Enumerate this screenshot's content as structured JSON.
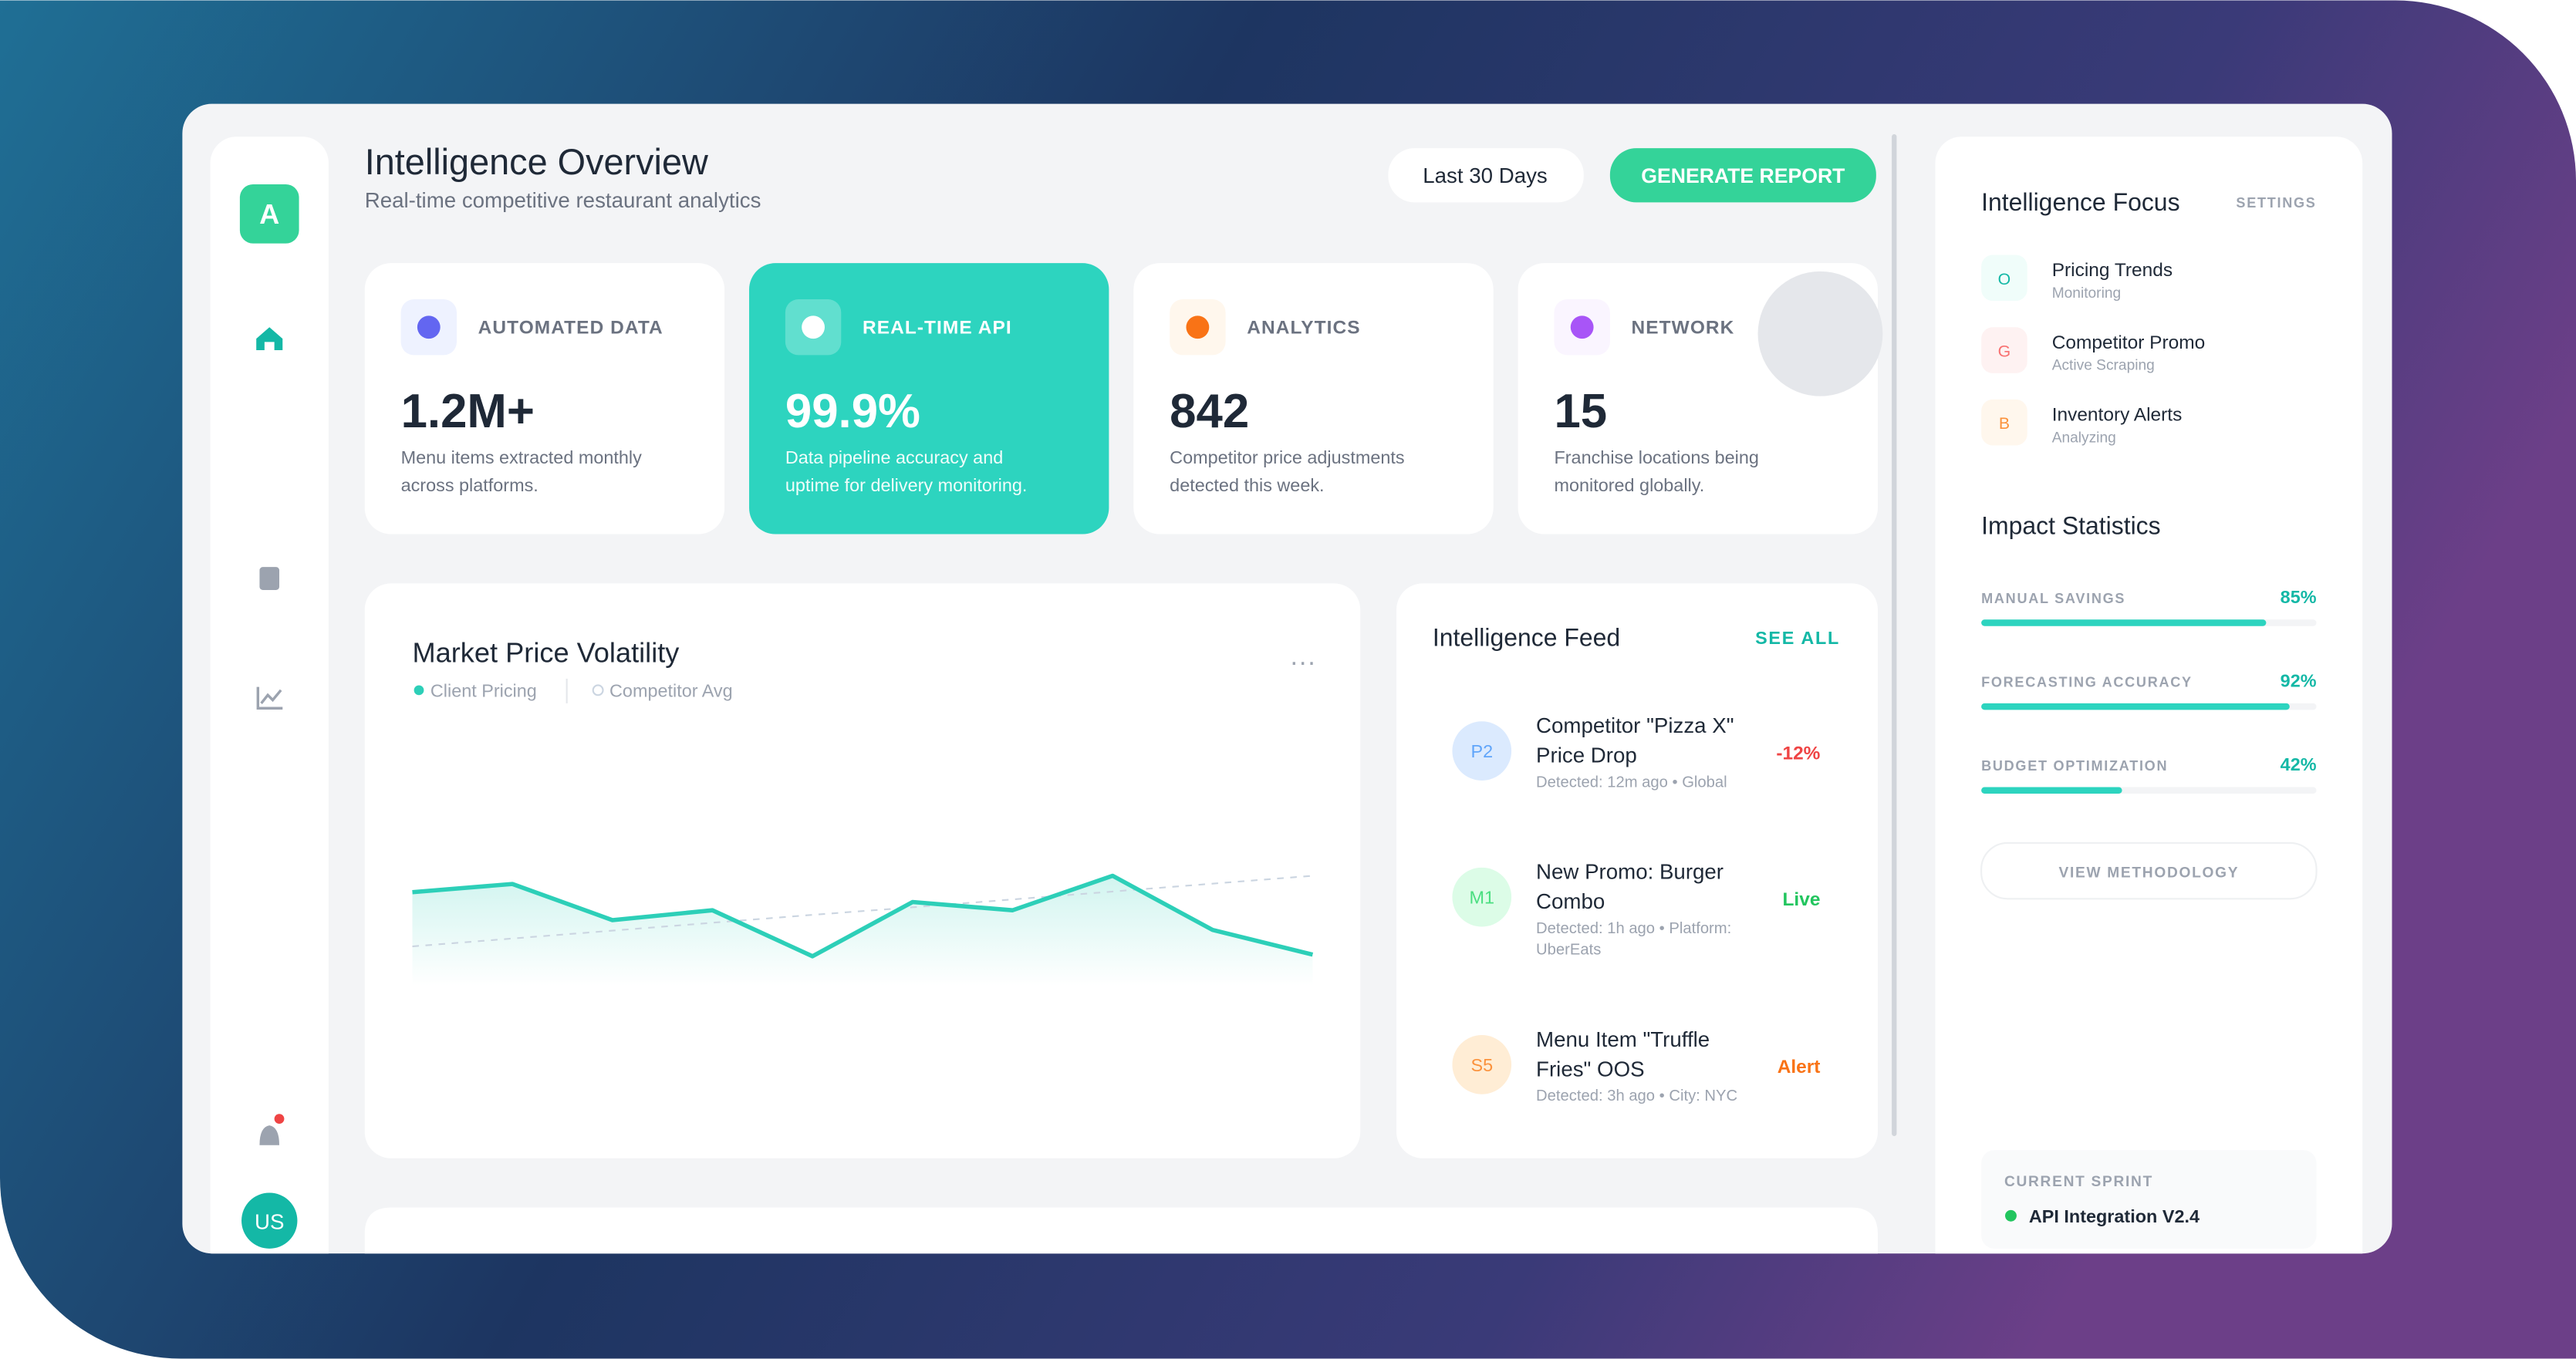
{
  "sidebar": {
    "logo": "A",
    "avatar": "US"
  },
  "header": {
    "title": "Intelligence Overview",
    "subtitle": "Real-time competitive restaurant analytics",
    "date_range": "Last 30 Days",
    "button": "GENERATE REPORT"
  },
  "cards": [
    {
      "label": "AUTOMATED DATA",
      "value": "1.2M+",
      "description": [
        "Menu items extracted monthly",
        "across platforms."
      ]
    },
    {
      "label": "REAL-TIME API",
      "value": "99.9%",
      "description": [
        "Data pipeline accuracy and",
        "uptime for delivery monitoring."
      ]
    },
    {
      "label": "ANALYTICS",
      "value": "842",
      "description": [
        "Competitor price adjustments",
        "detected this week."
      ]
    },
    {
      "label": "NETWORK",
      "value": "15",
      "description": [
        "Franchise locations being",
        "monitored globally."
      ]
    }
  ],
  "volatility_chart": {
    "type": "line",
    "title": "Market Price Volatility",
    "ylim": [
      0,
      100
    ],
    "series": [
      {
        "name": "Client Pricing",
        "color": "#2dcfb8",
        "values": [
          48.5,
          51,
          40,
          43,
          29,
          45.5,
          43,
          53.5,
          37,
          29.5
        ]
      },
      {
        "name": "Competitor Avg",
        "color": "#cbd5e1",
        "values": [
          32,
          34.4,
          36.8,
          39.2,
          41.6,
          43.9,
          46.3,
          48.7,
          51.1,
          53.5
        ]
      }
    ]
  },
  "feed": {
    "title": "Intelligence Feed",
    "link": "SEE ALL",
    "items": [
      {
        "badge": "P2",
        "title": [
          "Competitor \"Pizza X\"",
          "Price Drop"
        ],
        "meta": [
          "Detected: 12m ago • Global"
        ],
        "status": "-12%"
      },
      {
        "badge": "M1",
        "title": [
          "New Promo: Burger",
          "Combo"
        ],
        "meta": [
          "Detected: 1h ago • Platform:",
          "UberEats"
        ],
        "status": "Live"
      },
      {
        "badge": "S5",
        "title": [
          "Menu Item \"Truffle",
          "Fries\" OOS"
        ],
        "meta": [
          "Detected: 3h ago • City: NYC"
        ],
        "status": "Alert"
      }
    ]
  },
  "focus": {
    "title": "Intelligence Focus",
    "link": "SETTINGS",
    "items": [
      {
        "badge": "O",
        "name": "Pricing Trends",
        "status": "Monitoring"
      },
      {
        "badge": "G",
        "name": "Competitor Promo",
        "status": "Active Scraping"
      },
      {
        "badge": "B",
        "name": "Inventory Alerts",
        "status": "Analyzing"
      }
    ]
  },
  "impact": {
    "title": "Impact Statistics",
    "items": [
      {
        "label": "MANUAL SAVINGS",
        "value": 85,
        "value_label": "85%"
      },
      {
        "label": "FORECASTING ACCURACY",
        "value": 92,
        "value_label": "92%"
      },
      {
        "label": "BUDGET OPTIMIZATION",
        "value": 42,
        "value_label": "42%"
      }
    ],
    "button": "VIEW METHODOLOGY"
  },
  "sprint": {
    "label": "CURRENT SPRINT",
    "name": "API Integration V2.4"
  }
}
